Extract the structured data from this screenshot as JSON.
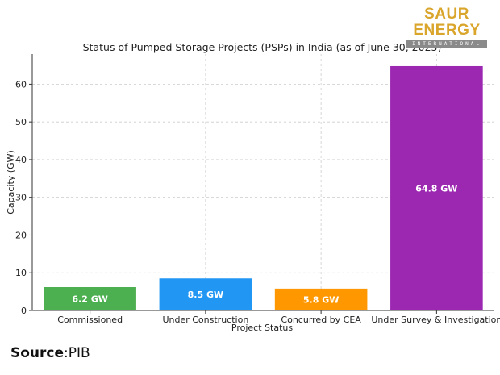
{
  "brand": {
    "name": "SAUR ENERGY",
    "subtitle": "INTERNATIONAL",
    "color": "#d9a52b"
  },
  "source": {
    "label": "Source",
    "value": ":PIB"
  },
  "chart_data": {
    "type": "bar",
    "title": "Status of Pumped Storage Projects (PSPs) in India (as of June 30, 2025)",
    "xlabel": "Project Status",
    "ylabel": "Capacity (GW)",
    "categories": [
      "Commissioned",
      "Under Construction",
      "Concurred by CEA",
      "Under Survey & Investigation"
    ],
    "values": [
      6.2,
      8.5,
      5.8,
      64.8
    ],
    "data_labels": [
      "6.2 GW",
      "8.5 GW",
      "5.8 GW",
      "64.8 GW"
    ],
    "colors": [
      "#4caf50",
      "#2196f3",
      "#ff9800",
      "#9c27b0"
    ],
    "yticks": [
      0,
      10,
      20,
      30,
      40,
      50,
      60
    ],
    "ylim": [
      0,
      68
    ],
    "grid": true,
    "legend": "none"
  }
}
